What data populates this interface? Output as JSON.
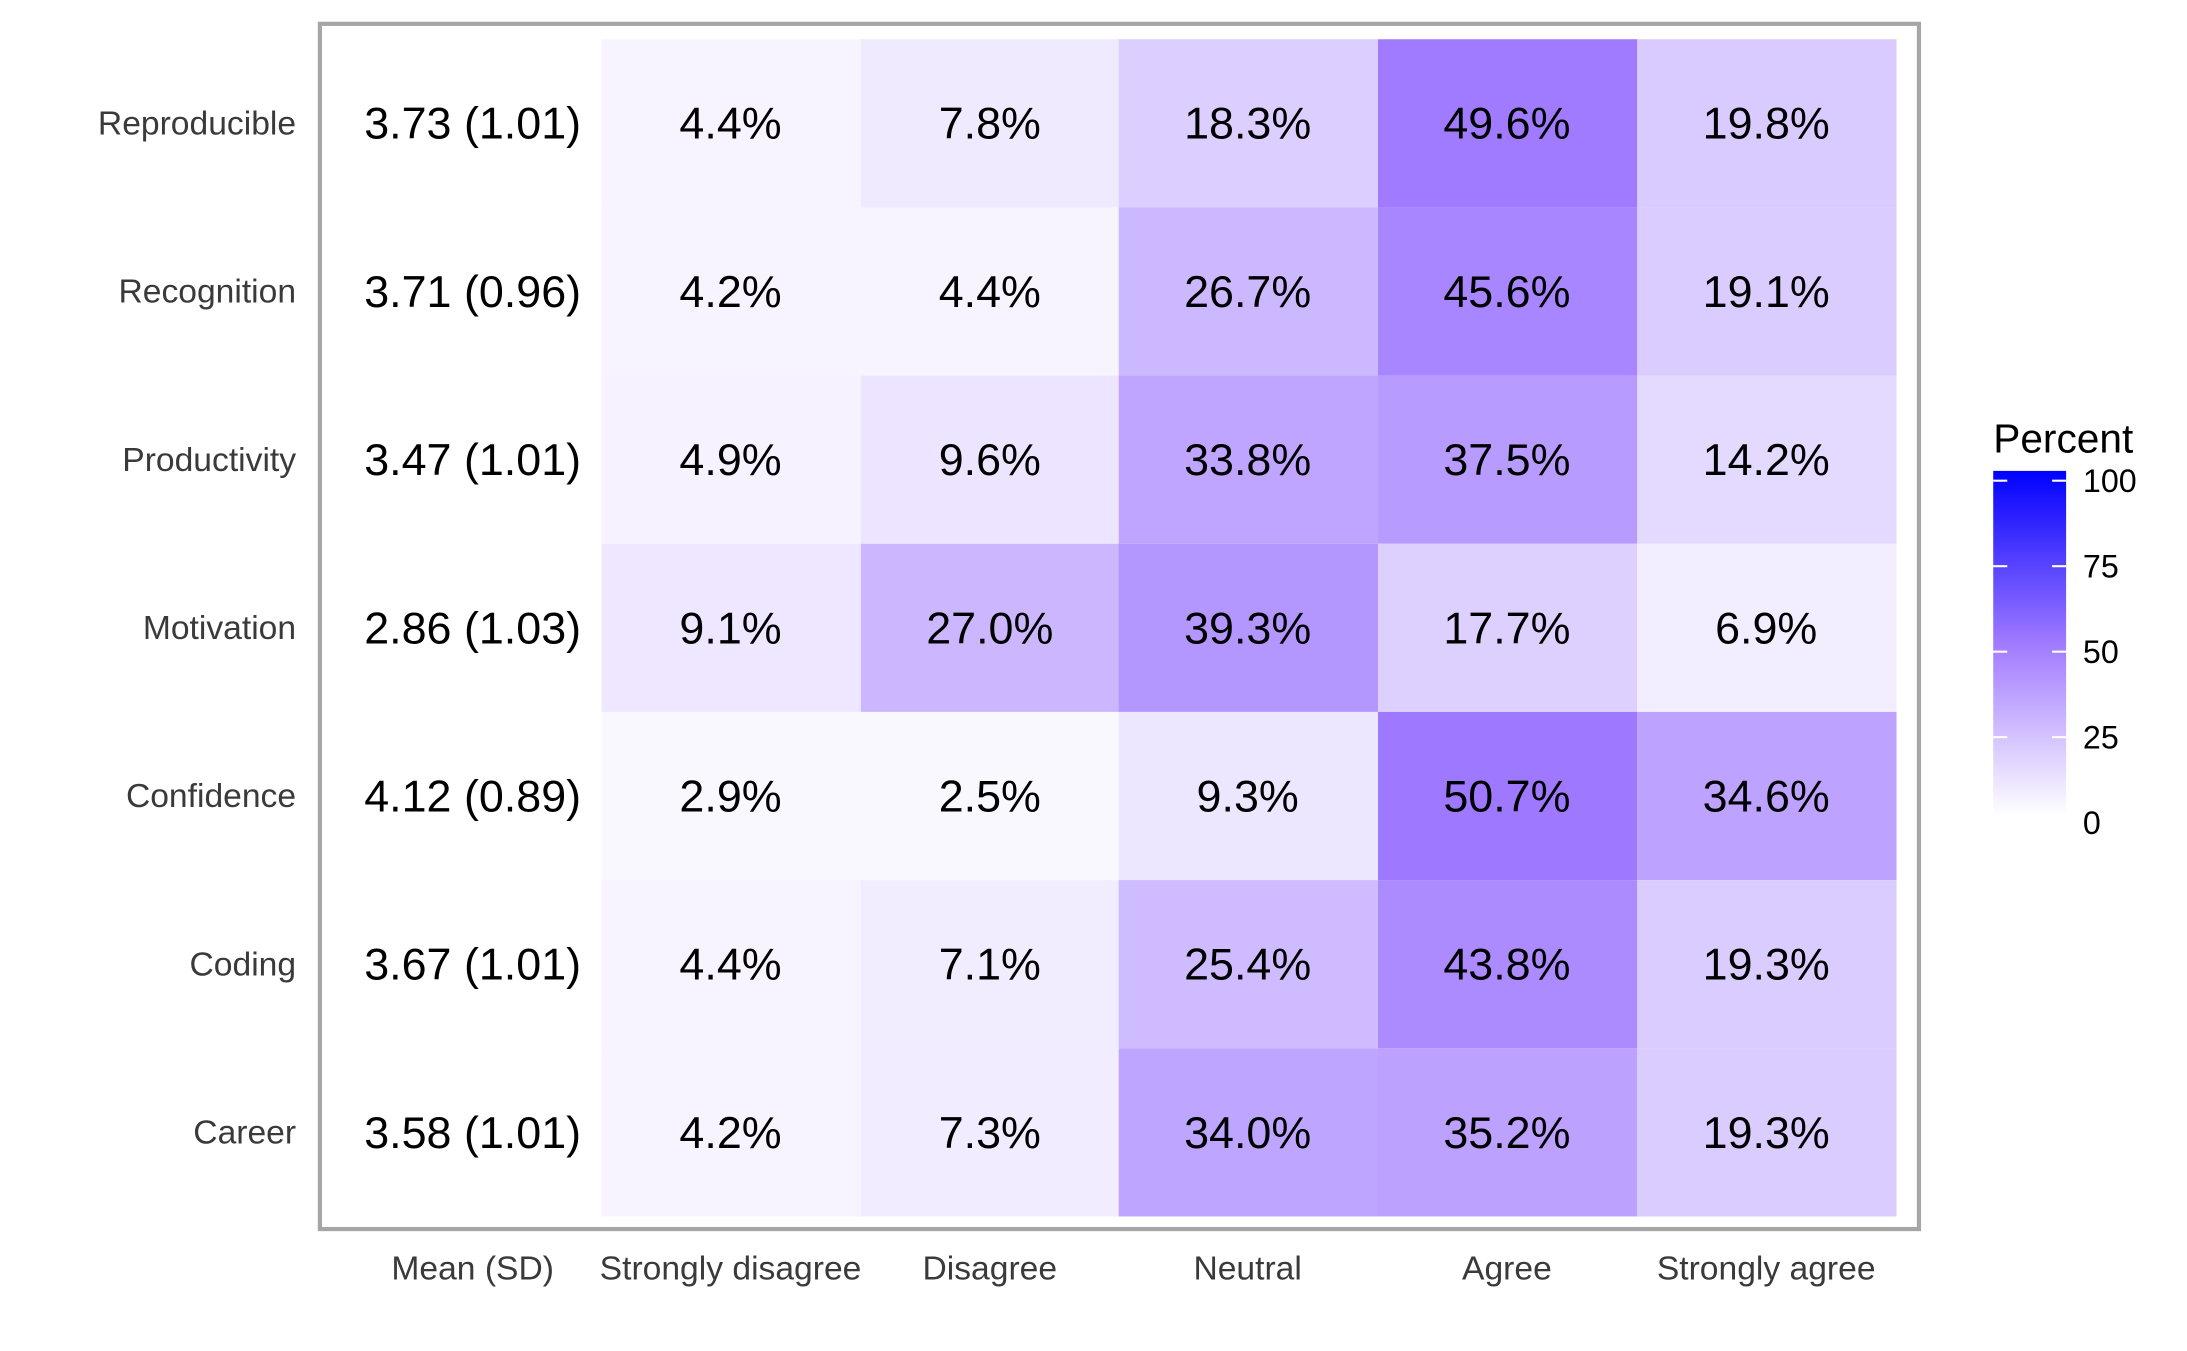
{
  "chart_data": {
    "type": "heatmap",
    "rows": [
      "Reproducible",
      "Recognition",
      "Productivity",
      "Motivation",
      "Confidence",
      "Coding",
      "Career"
    ],
    "columns": [
      "Mean (SD)",
      "Strongly disagree",
      "Disagree",
      "Neutral",
      "Agree",
      "Strongly agree"
    ],
    "mean_sd": [
      "3.73 (1.01)",
      "3.71 (0.96)",
      "3.47 (1.01)",
      "2.86 (1.03)",
      "4.12 (0.89)",
      "3.67 (1.01)",
      "3.58 (1.01)"
    ],
    "values": [
      [
        4.4,
        7.8,
        18.3,
        49.6,
        19.8
      ],
      [
        4.2,
        4.4,
        26.7,
        45.6,
        19.1
      ],
      [
        4.9,
        9.6,
        33.8,
        37.5,
        14.2
      ],
      [
        9.1,
        27.0,
        39.3,
        17.7,
        6.9
      ],
      [
        2.9,
        2.5,
        9.3,
        50.7,
        34.6
      ],
      [
        4.4,
        7.1,
        25.4,
        43.8,
        19.3
      ],
      [
        4.2,
        7.3,
        34.0,
        35.2,
        19.3
      ]
    ],
    "labels": [
      [
        "4.4%",
        "7.8%",
        "18.3%",
        "49.6%",
        "19.8%"
      ],
      [
        "4.2%",
        "4.4%",
        "26.7%",
        "45.6%",
        "19.1%"
      ],
      [
        "4.9%",
        "9.6%",
        "33.8%",
        "37.5%",
        "14.2%"
      ],
      [
        "9.1%",
        "27.0%",
        "39.3%",
        "17.7%",
        "6.9%"
      ],
      [
        "2.9%",
        "2.5%",
        "9.3%",
        "50.7%",
        "34.6%"
      ],
      [
        "4.4%",
        "7.1%",
        "25.4%",
        "43.8%",
        "19.3%"
      ],
      [
        "4.2%",
        "7.3%",
        "34.0%",
        "35.2%",
        "19.3%"
      ]
    ],
    "legend": {
      "title": "Percent",
      "ticks": [
        0,
        25,
        50,
        75,
        100
      ],
      "tick_labels": [
        "0",
        "25",
        "50",
        "75",
        "100"
      ],
      "range": [
        0,
        100
      ],
      "placement": "right"
    },
    "colors": {
      "low": "#ffffff",
      "mid": "#a07aff",
      "high": "#0000ff"
    }
  }
}
